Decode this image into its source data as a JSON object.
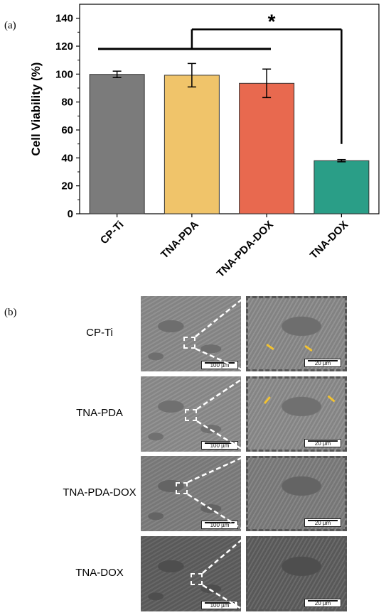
{
  "panel_a_label": "(a)",
  "panel_b_label": "(b)",
  "chart_data": {
    "type": "bar",
    "categories": [
      "CP-Ti",
      "TNA-PDA",
      "TNA-PDA-DOX",
      "TNA-DOX"
    ],
    "values": [
      99.8,
      99.2,
      93.4,
      38.0
    ],
    "errors": [
      2.3,
      8.4,
      10.2,
      0.8
    ],
    "colors": [
      "#7b7b7b",
      "#f0c46a",
      "#e8694f",
      "#2a9e87"
    ],
    "ylabel": "Cell Viability (%)",
    "xlabel": "",
    "ylim": [
      0,
      150
    ],
    "yticks": [
      0,
      20,
      40,
      60,
      80,
      100,
      120,
      140
    ],
    "significance_label": "*",
    "grid": false
  },
  "sem_rows": [
    {
      "label": "CP-Ti",
      "scale_left": "100 µm",
      "scale_right": "20 µm"
    },
    {
      "label": "TNA-PDA",
      "scale_left": "100 µm",
      "scale_right": "20 µm"
    },
    {
      "label": "TNA-PDA-DOX",
      "scale_left": "100 µm",
      "scale_right": "20 µm"
    },
    {
      "label": "TNA-DOX",
      "scale_left": "100 µm",
      "scale_right": "20 µm"
    }
  ]
}
